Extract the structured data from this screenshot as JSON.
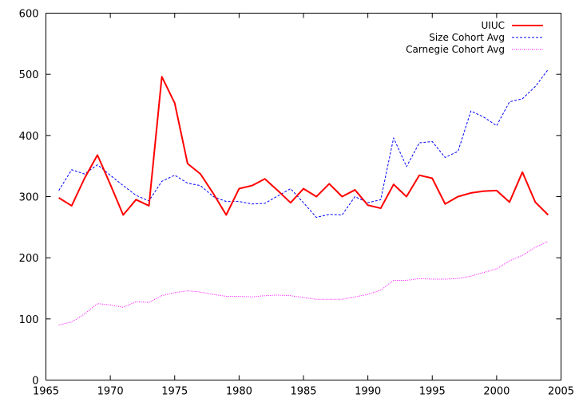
{
  "chart_data": {
    "type": "line",
    "xlim": [
      1965,
      2005
    ],
    "ylim": [
      0,
      600
    ],
    "x_ticks": [
      1965,
      1970,
      1975,
      1980,
      1985,
      1990,
      1995,
      2000,
      2005
    ],
    "y_ticks": [
      0,
      100,
      200,
      300,
      400,
      500,
      600
    ],
    "grid": false,
    "legend_position": "top-right",
    "x": [
      1966,
      1967,
      1968,
      1969,
      1970,
      1971,
      1972,
      1973,
      1974,
      1975,
      1976,
      1977,
      1978,
      1979,
      1980,
      1981,
      1982,
      1983,
      1984,
      1985,
      1986,
      1987,
      1988,
      1989,
      1990,
      1991,
      1992,
      1993,
      1994,
      1995,
      1996,
      1997,
      1998,
      1999,
      2000,
      2001,
      2002,
      2003,
      2004
    ],
    "series": [
      {
        "name": "UIUC",
        "color": "#ff0000",
        "style": "solid",
        "values": [
          298,
          285,
          330,
          368,
          320,
          270,
          295,
          285,
          496,
          453,
          354,
          337,
          305,
          270,
          313,
          318,
          329,
          310,
          290,
          313,
          300,
          321,
          300,
          311,
          286,
          281,
          320,
          300,
          335,
          330,
          288,
          300,
          306,
          309,
          310,
          291,
          340,
          291,
          270
        ]
      },
      {
        "name": "Size Cohort Avg",
        "color": "#0000ff",
        "style": "dashed",
        "values": [
          310,
          344,
          337,
          352,
          335,
          318,
          302,
          293,
          325,
          335,
          322,
          318,
          300,
          292,
          292,
          288,
          289,
          301,
          313,
          290,
          266,
          271,
          270,
          300,
          290,
          295,
          396,
          349,
          388,
          390,
          364,
          374,
          440,
          430,
          416,
          455,
          460,
          480,
          508
        ]
      },
      {
        "name": "Carnegie Cohort Avg",
        "color": "#ff00ff",
        "style": "dotted",
        "values": [
          90,
          95,
          108,
          125,
          123,
          119,
          128,
          127,
          138,
          143,
          146,
          144,
          140,
          137,
          137,
          136,
          138,
          139,
          138,
          135,
          132,
          132,
          132,
          136,
          140,
          147,
          163,
          163,
          166,
          165,
          165,
          166,
          170,
          176,
          182,
          195,
          204,
          217,
          227
        ]
      }
    ]
  }
}
